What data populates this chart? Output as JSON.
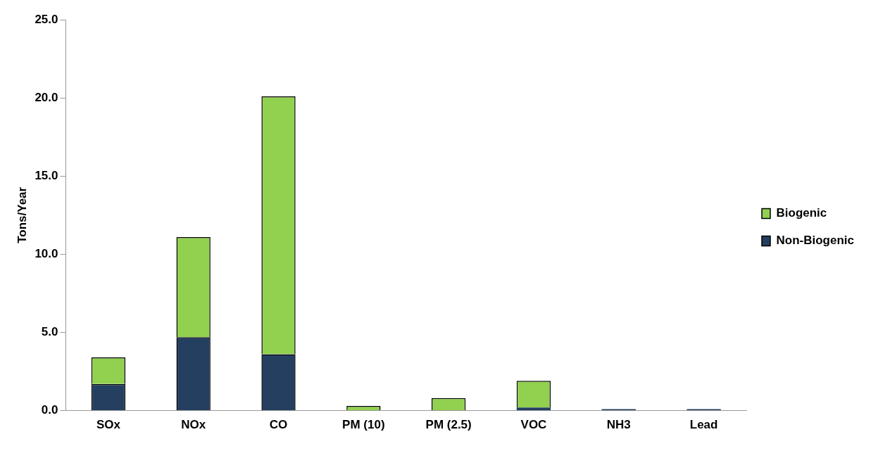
{
  "chart_data": {
    "type": "bar",
    "ylabel": "Tons/Year",
    "categories": [
      "SOx",
      "NOx",
      "CO",
      "PM (10)",
      "PM (2.5)",
      "VOC",
      "NH3",
      "Lead"
    ],
    "stacked": true,
    "legend": "right",
    "grid": false,
    "ylim": [
      0,
      25
    ],
    "yticks": [
      {
        "value": 0,
        "label": "0.0"
      },
      {
        "value": 5,
        "label": "5.0"
      },
      {
        "value": 10,
        "label": "10.0"
      },
      {
        "value": 15,
        "label": "15.0"
      },
      {
        "value": 20,
        "label": "20.0"
      },
      {
        "value": 25,
        "label": "25.0"
      }
    ],
    "series": [
      {
        "name": "Non-Biogenic",
        "color": "#243f60",
        "values": [
          1.7,
          4.7,
          3.6,
          0,
          0,
          0.2,
          0.1,
          0.1
        ]
      },
      {
        "name": "Biogenic",
        "color": "#92d050",
        "values": [
          1.7,
          6.4,
          16.5,
          0.3,
          0.8,
          1.7,
          0,
          0
        ]
      }
    ]
  }
}
